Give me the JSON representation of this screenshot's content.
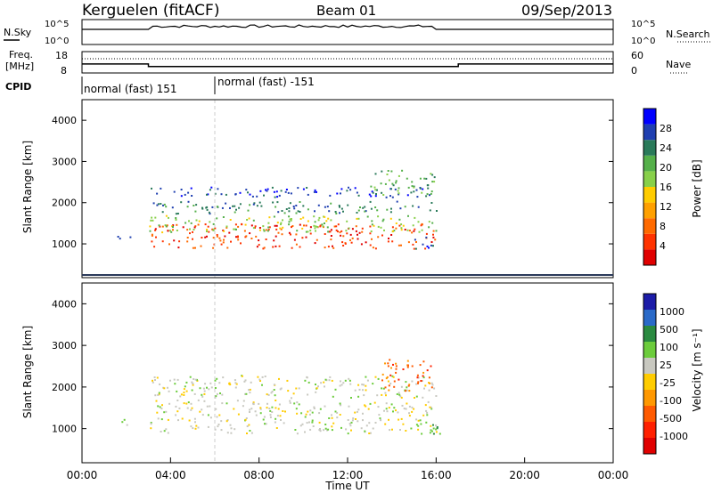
{
  "header": {
    "station": "Kerguelen (fitACF)",
    "beam": "Beam 01",
    "date": "09/Sep/2013"
  },
  "colors": {
    "power_scale": [
      "#0000ff",
      "#1f3fb0",
      "#2a7a5a",
      "#55b04a",
      "#88d04a",
      "#ffcc00",
      "#ffa000",
      "#ff6a00",
      "#ff3300",
      "#e00000"
    ],
    "velocity_scale": [
      "#1c1ca8",
      "#2a6ac8",
      "#2a8a40",
      "#6ccc3c",
      "#c8c8c0",
      "#ffcc00",
      "#ff9800",
      "#ff5a00",
      "#ff2000",
      "#e00000"
    ]
  },
  "chart_data": [
    {
      "id": "nsky",
      "type": "line",
      "left_label": "N.Sky",
      "right_label": "N.Search",
      "left_ticks": [
        "10^5",
        "10^0"
      ],
      "right_ticks": [
        "10^5",
        "10^0"
      ],
      "x_range": [
        0,
        24
      ],
      "scale": "log"
    },
    {
      "id": "freq",
      "type": "line",
      "left_label_1": "Freq.",
      "left_label_2": "[MHz]",
      "right_label": "Nave",
      "left_ticks": [
        "18",
        "8"
      ],
      "right_ticks": [
        "60",
        "0"
      ],
      "x_range": [
        0,
        24
      ],
      "series": [
        {
          "x": [
            0,
            3,
            3,
            17,
            17,
            24
          ],
          "y": [
            12.2,
            12.2,
            11.0,
            11.0,
            12.2,
            12.2
          ]
        }
      ]
    },
    {
      "id": "cpid",
      "type": "table",
      "label": "CPID",
      "segments": [
        {
          "start": 0,
          "end": 6,
          "text": "normal (fast) 151"
        },
        {
          "start": 6,
          "end": 24,
          "text": "normal (fast) -151"
        }
      ]
    },
    {
      "id": "power",
      "type": "heatmap",
      "ylabel": "Slant Range [km]",
      "y_ticks": [
        1000,
        2000,
        3000,
        4000
      ],
      "ylim": [
        180,
        4500
      ],
      "xlim": [
        0,
        24
      ],
      "colorbar_label": "Power [dB]",
      "colorbar_ticks": [
        "28",
        "24",
        "20",
        "16",
        "12",
        "8",
        "4"
      ],
      "bands": [
        {
          "x": [
            1.5,
            2.3
          ],
          "y": [
            1100,
            1250
          ],
          "level": 1
        },
        {
          "x": [
            3,
            16
          ],
          "y": [
            900,
            1500
          ],
          "level": 8
        },
        {
          "x": [
            3,
            16
          ],
          "y": [
            1300,
            1700
          ],
          "level": 4
        },
        {
          "x": [
            3,
            16
          ],
          "y": [
            1750,
            2050
          ],
          "level": 2
        },
        {
          "x": [
            3,
            16
          ],
          "y": [
            2150,
            2400
          ],
          "level": 1
        },
        {
          "x": [
            13,
            16
          ],
          "y": [
            2200,
            2800
          ],
          "level": 3
        },
        {
          "x": [
            15,
            16
          ],
          "y": [
            900,
            1200
          ],
          "level": 1
        }
      ]
    },
    {
      "id": "velocity",
      "type": "heatmap",
      "ylabel": "Slant Range [km]",
      "xlabel": "Time UT",
      "y_ticks": [
        1000,
        2000,
        3000,
        4000
      ],
      "ylim": [
        180,
        4500
      ],
      "xlim": [
        0,
        24
      ],
      "x_tick_labels": [
        "00:00",
        "04:00",
        "08:00",
        "12:00",
        "16:00",
        "20:00",
        "00:00"
      ],
      "colorbar_label": "Velocity [m s⁻¹]",
      "colorbar_ticks": [
        "1000",
        "500",
        "100",
        "25",
        "-25",
        "-100",
        "-500",
        "-1000"
      ],
      "bands": [
        {
          "x": [
            1.5,
            2.3
          ],
          "y": [
            1100,
            1250
          ],
          "level": 4
        },
        {
          "x": [
            3,
            16
          ],
          "y": [
            900,
            1700
          ],
          "level": 4
        },
        {
          "x": [
            3,
            16
          ],
          "y": [
            1750,
            2300
          ],
          "level": 4
        },
        {
          "x": [
            13.5,
            15.8
          ],
          "y": [
            1900,
            2700
          ],
          "level": 7
        },
        {
          "x": [
            15.3,
            16.2
          ],
          "y": [
            850,
            1150
          ],
          "level": 3
        }
      ]
    }
  ]
}
